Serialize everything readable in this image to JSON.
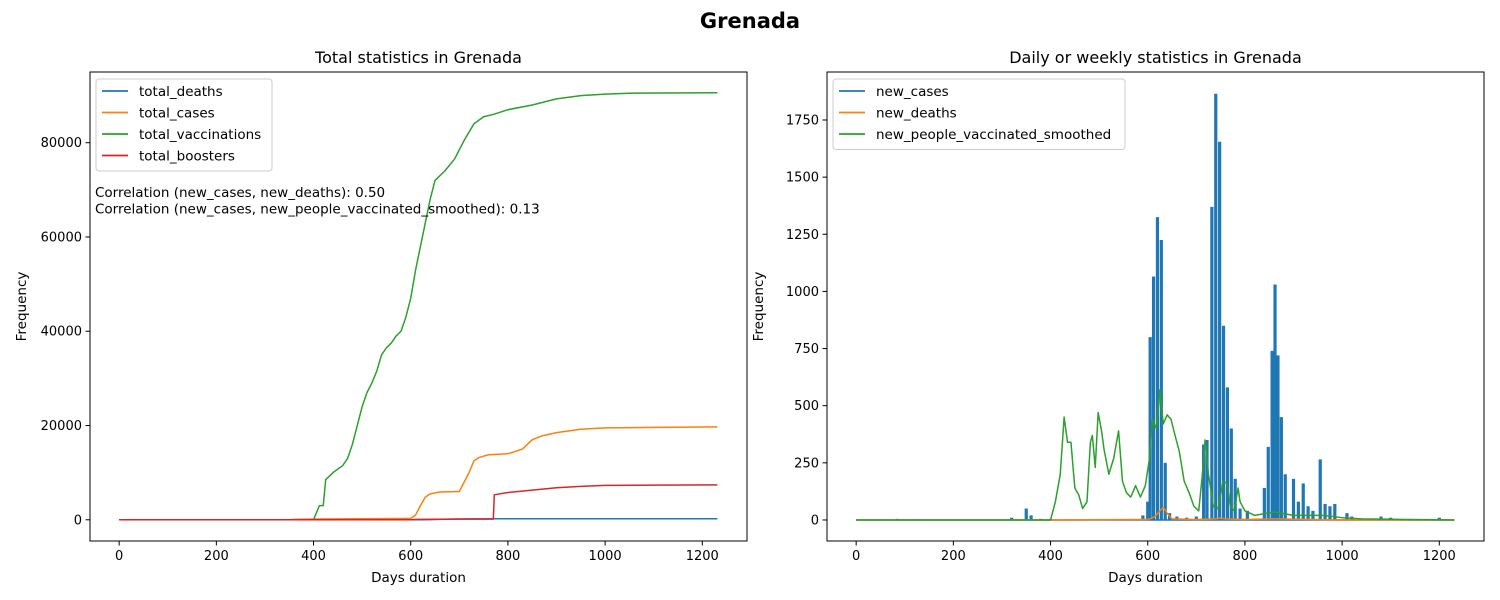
{
  "figure": {
    "title": "Grenada"
  },
  "chart_data": [
    {
      "type": "line",
      "title": "Total statistics in Grenada",
      "xlabel": "Days duration",
      "ylabel": "Frequency",
      "xlim": [
        -60,
        1292
      ],
      "ylim": [
        -4500,
        95000
      ],
      "xticks": [
        0,
        200,
        400,
        600,
        800,
        1000,
        1200
      ],
      "yticks": [
        0,
        20000,
        40000,
        60000,
        80000
      ],
      "legend": "top-left",
      "grid": false,
      "annotations": [
        "Correlation (new_cases, new_deaths): 0.50",
        "Correlation (new_cases, new_people_vaccinated_smoothed): 0.13"
      ],
      "series": [
        {
          "name": "total_deaths",
          "color": "#1f77b4",
          "points": [
            [
              0,
              0
            ],
            [
              600,
              0
            ],
            [
              620,
              10
            ],
            [
              640,
              40
            ],
            [
              660,
              100
            ],
            [
              680,
              150
            ],
            [
              720,
              200
            ],
            [
              780,
              210
            ],
            [
              1231,
              218
            ]
          ]
        },
        {
          "name": "total_cases",
          "color": "#ff7f0e",
          "points": [
            [
              0,
              0
            ],
            [
              350,
              0
            ],
            [
              360,
              100
            ],
            [
              400,
              160
            ],
            [
              600,
              300
            ],
            [
              610,
              1000
            ],
            [
              620,
              3000
            ],
            [
              630,
              4800
            ],
            [
              640,
              5500
            ],
            [
              660,
              5900
            ],
            [
              700,
              6000
            ],
            [
              710,
              8000
            ],
            [
              720,
              10000
            ],
            [
              730,
              12500
            ],
            [
              740,
              13200
            ],
            [
              760,
              13800
            ],
            [
              800,
              14000
            ],
            [
              830,
              15000
            ],
            [
              850,
              17000
            ],
            [
              870,
              17800
            ],
            [
              900,
              18500
            ],
            [
              950,
              19200
            ],
            [
              1000,
              19500
            ],
            [
              1100,
              19600
            ],
            [
              1231,
              19700
            ]
          ]
        },
        {
          "name": "total_vaccinations",
          "color": "#2ca02c",
          "points": [
            [
              0,
              0
            ],
            [
              400,
              0
            ],
            [
              412,
              3000
            ],
            [
              420,
              3000
            ],
            [
              425,
              8500
            ],
            [
              440,
              10000
            ],
            [
              460,
              11500
            ],
            [
              470,
              13000
            ],
            [
              480,
              16000
            ],
            [
              490,
              20000
            ],
            [
              500,
              24000
            ],
            [
              510,
              27000
            ],
            [
              520,
              29000
            ],
            [
              530,
              31500
            ],
            [
              540,
              35000
            ],
            [
              550,
              36500
            ],
            [
              560,
              37500
            ],
            [
              570,
              39000
            ],
            [
              580,
              40000
            ],
            [
              590,
              43000
            ],
            [
              600,
              47000
            ],
            [
              610,
              53000
            ],
            [
              620,
              58000
            ],
            [
              630,
              63000
            ],
            [
              640,
              68000
            ],
            [
              650,
              72000
            ],
            [
              670,
              74000
            ],
            [
              690,
              76500
            ],
            [
              710,
              80500
            ],
            [
              730,
              84000
            ],
            [
              750,
              85500
            ],
            [
              770,
              86000
            ],
            [
              800,
              87000
            ],
            [
              850,
              88000
            ],
            [
              900,
              89300
            ],
            [
              950,
              90000
            ],
            [
              1000,
              90300
            ],
            [
              1050,
              90500
            ],
            [
              1231,
              90600
            ]
          ]
        },
        {
          "name": "total_boosters",
          "color": "#d62728",
          "points": [
            [
              0,
              0
            ],
            [
              600,
              0
            ],
            [
              610,
              100
            ],
            [
              700,
              150
            ],
            [
              770,
              150
            ],
            [
              772,
              5300
            ],
            [
              800,
              5800
            ],
            [
              850,
              6300
            ],
            [
              900,
              6800
            ],
            [
              950,
              7100
            ],
            [
              1000,
              7300
            ],
            [
              1100,
              7350
            ],
            [
              1231,
              7400
            ]
          ]
        }
      ]
    },
    {
      "type": "line",
      "title": "Daily or weekly statistics in Grenada",
      "xlabel": "Days duration",
      "ylabel": "Frequency",
      "xlim": [
        -60,
        1292
      ],
      "ylim": [
        -92,
        1960
      ],
      "xticks": [
        0,
        200,
        400,
        600,
        800,
        1000,
        1200
      ],
      "yticks": [
        0,
        250,
        500,
        750,
        1000,
        1250,
        1500,
        1750
      ],
      "legend": "top-left",
      "grid": false,
      "series": [
        {
          "name": "new_cases",
          "color": "#1f77b4",
          "style": "spikes",
          "points": [
            [
              85,
              5
            ],
            [
              120,
              3
            ],
            [
              320,
              10
            ],
            [
              350,
              50
            ],
            [
              360,
              20
            ],
            [
              380,
              5
            ],
            [
              400,
              5
            ],
            [
              590,
              20
            ],
            [
              600,
              80
            ],
            [
              605,
              800
            ],
            [
              612,
              1065
            ],
            [
              620,
              1325
            ],
            [
              628,
              1225
            ],
            [
              636,
              250
            ],
            [
              645,
              30
            ],
            [
              660,
              15
            ],
            [
              680,
              10
            ],
            [
              700,
              15
            ],
            [
              715,
              330
            ],
            [
              722,
              350
            ],
            [
              732,
              1370
            ],
            [
              740,
              1865
            ],
            [
              748,
              1655
            ],
            [
              756,
              850
            ],
            [
              764,
              580
            ],
            [
              772,
              400
            ],
            [
              780,
              180
            ],
            [
              790,
              50
            ],
            [
              805,
              40
            ],
            [
              840,
              140
            ],
            [
              848,
              320
            ],
            [
              856,
              740
            ],
            [
              862,
              1030
            ],
            [
              868,
              720
            ],
            [
              875,
              450
            ],
            [
              883,
              200
            ],
            [
              900,
              180
            ],
            [
              910,
              80
            ],
            [
              920,
              160
            ],
            [
              930,
              60
            ],
            [
              940,
              40
            ],
            [
              955,
              265
            ],
            [
              965,
              70
            ],
            [
              975,
              60
            ],
            [
              985,
              70
            ],
            [
              1010,
              30
            ],
            [
              1020,
              15
            ],
            [
              1080,
              15
            ],
            [
              1100,
              10
            ],
            [
              1200,
              10
            ]
          ]
        },
        {
          "name": "new_deaths",
          "color": "#ff7f0e",
          "points": [
            [
              0,
              0
            ],
            [
              400,
              0
            ],
            [
              600,
              2
            ],
            [
              615,
              15
            ],
            [
              625,
              40
            ],
            [
              632,
              55
            ],
            [
              640,
              30
            ],
            [
              650,
              5
            ],
            [
              700,
              2
            ],
            [
              740,
              5
            ],
            [
              750,
              8
            ],
            [
              760,
              5
            ],
            [
              800,
              2
            ],
            [
              860,
              5
            ],
            [
              1000,
              0
            ],
            [
              1231,
              0
            ]
          ]
        },
        {
          "name": "new_people_vaccinated_smoothed",
          "color": "#2ca02c",
          "points": [
            [
              0,
              0
            ],
            [
              400,
              0
            ],
            [
              410,
              80
            ],
            [
              420,
              200
            ],
            [
              428,
              450
            ],
            [
              435,
              340
            ],
            [
              442,
              340
            ],
            [
              450,
              140
            ],
            [
              458,
              110
            ],
            [
              466,
              50
            ],
            [
              475,
              80
            ],
            [
              482,
              340
            ],
            [
              486,
              370
            ],
            [
              492,
              230
            ],
            [
              498,
              470
            ],
            [
              505,
              390
            ],
            [
              510,
              310
            ],
            [
              520,
              200
            ],
            [
              530,
              270
            ],
            [
              540,
              390
            ],
            [
              548,
              170
            ],
            [
              556,
              120
            ],
            [
              565,
              100
            ],
            [
              575,
              150
            ],
            [
              585,
              100
            ],
            [
              595,
              150
            ],
            [
              603,
              260
            ],
            [
              610,
              440
            ],
            [
              618,
              400
            ],
            [
              625,
              570
            ],
            [
              632,
              420
            ],
            [
              640,
              460
            ],
            [
              648,
              440
            ],
            [
              655,
              380
            ],
            [
              665,
              300
            ],
            [
              675,
              170
            ],
            [
              685,
              120
            ],
            [
              695,
              60
            ],
            [
              705,
              40
            ],
            [
              712,
              190
            ],
            [
              718,
              350
            ],
            [
              725,
              200
            ],
            [
              735,
              60
            ],
            [
              745,
              50
            ],
            [
              755,
              170
            ],
            [
              763,
              160
            ],
            [
              770,
              60
            ],
            [
              778,
              40
            ],
            [
              786,
              140
            ],
            [
              790,
              80
            ],
            [
              800,
              40
            ],
            [
              820,
              20
            ],
            [
              860,
              35
            ],
            [
              900,
              20
            ],
            [
              960,
              20
            ],
            [
              1000,
              10
            ],
            [
              1040,
              5
            ],
            [
              1100,
              3
            ],
            [
              1231,
              0
            ]
          ]
        }
      ]
    }
  ]
}
